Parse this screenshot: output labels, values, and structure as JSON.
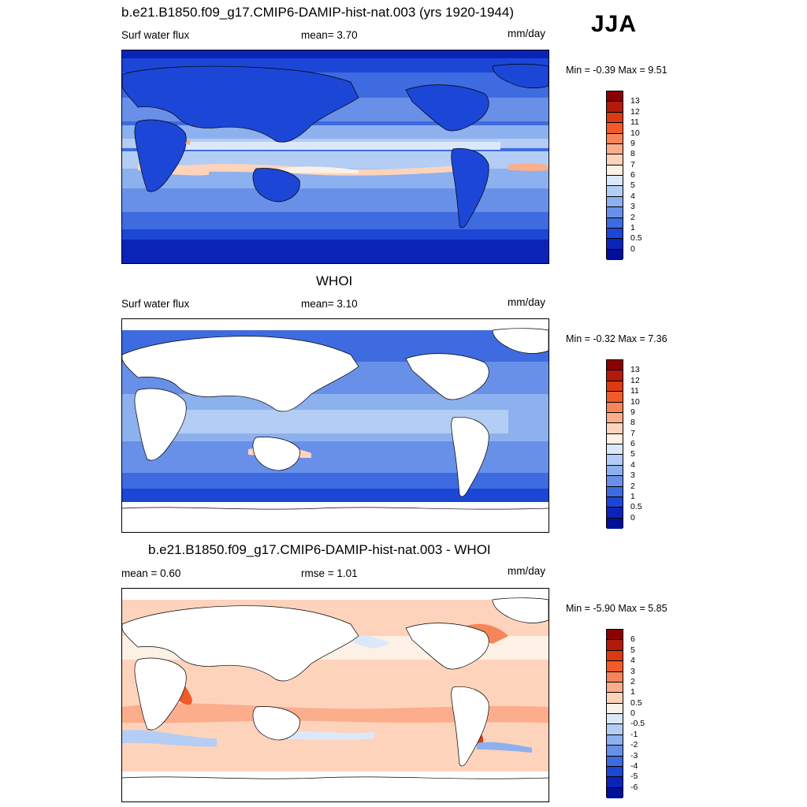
{
  "season": "JJA",
  "panels": [
    {
      "title": "b.e21.B1850.f09_g17.CMIP6-DAMIP-hist-nat.003 (yrs 1920-1944)",
      "left_label": "Surf water flux",
      "stat": "mean=   3.70",
      "units": "mm/day",
      "minmax": "Min =  -0.39 Max =    9.51",
      "colorbar": {
        "colors": [
          "#8b0000",
          "#b31a0a",
          "#dc3a12",
          "#f25a2a",
          "#f7855a",
          "#fbad8c",
          "#fdd3bc",
          "#fdf1e6",
          "#dbe8fa",
          "#b3cdf4",
          "#8db0ee",
          "#6890e8",
          "#3f6be0",
          "#1c46d6",
          "#0a24b8",
          "#00109a"
        ],
        "labels": [
          "13",
          "12",
          "11",
          "10",
          "9",
          "8",
          "7",
          "6",
          "5",
          "4",
          "3",
          "2",
          "1",
          "0.5",
          "0"
        ]
      }
    },
    {
      "title": "WHOI",
      "left_label": "Surf water flux",
      "stat": "mean=   3.10",
      "units": "mm/day",
      "minmax": "Min =  -0.32 Max =    7.36",
      "colorbar": {
        "colors": [
          "#8b0000",
          "#b31a0a",
          "#dc3a12",
          "#f25a2a",
          "#f7855a",
          "#fbad8c",
          "#fdd3bc",
          "#fdf1e6",
          "#dbe8fa",
          "#b3cdf4",
          "#8db0ee",
          "#6890e8",
          "#3f6be0",
          "#1c46d6",
          "#0a24b8",
          "#00109a"
        ],
        "labels": [
          "13",
          "12",
          "11",
          "10",
          "9",
          "8",
          "7",
          "6",
          "5",
          "4",
          "3",
          "2",
          "1",
          "0.5",
          "0"
        ]
      }
    },
    {
      "title": "b.e21.B1850.f09_g17.CMIP6-DAMIP-hist-nat.003 - WHOI",
      "left_label": "mean =   0.60",
      "stat": "rmse =   1.01",
      "units": "mm/day",
      "minmax": "Min =  -5.90 Max =    5.85",
      "colorbar": {
        "colors": [
          "#8b0000",
          "#b31a0a",
          "#dc3a12",
          "#f25a2a",
          "#f7855a",
          "#fbad8c",
          "#fdd3bc",
          "#fdf1e6",
          "#dbe8fa",
          "#b3cdf4",
          "#8db0ee",
          "#6890e8",
          "#3f6be0",
          "#1c46d6",
          "#0a24b8",
          "#00109a"
        ],
        "labels": [
          "6",
          "5",
          "4",
          "3",
          "2",
          "1",
          "0.5",
          "0",
          "-0.5",
          "-1",
          "-2",
          "-3",
          "-4",
          "-5",
          "-6"
        ]
      }
    }
  ]
}
